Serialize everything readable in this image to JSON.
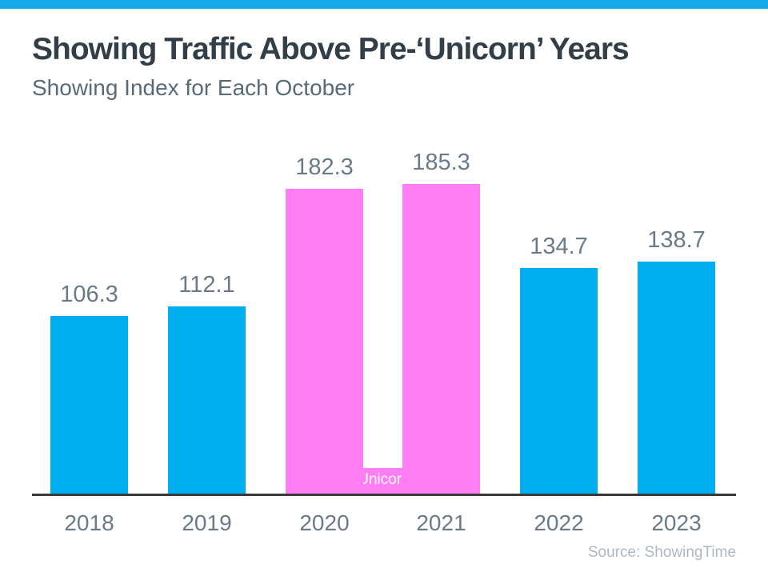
{
  "header": {
    "title": "Showing Traffic Above Pre-‘Unicorn’ Years",
    "subtitle": "Showing Index for Each October"
  },
  "chart_data": {
    "type": "bar",
    "title": "Showing Traffic Above Pre-‘Unicorn’ Years",
    "subtitle": "Showing Index for Each October",
    "categories": [
      "2018",
      "2019",
      "2020",
      "2021",
      "2022",
      "2023"
    ],
    "values": [
      106.3,
      112.1,
      182.3,
      185.3,
      134.7,
      138.7
    ],
    "value_labels": [
      "106.3",
      "112.1",
      "182.3",
      "185.3",
      "134.7",
      "138.7"
    ],
    "highlighted_categories": [
      "2020",
      "2021"
    ],
    "annotation": "‘Unicorn’ Years",
    "annotation_icon": "unicorn-house-icon",
    "colors": {
      "bar": "#00AEEF",
      "bar_highlighted": "#FF7DF5",
      "accent_bar": "#16A9E9",
      "label_text": "#6B7A89",
      "axis_line": "#3A3A3A"
    },
    "grid": false,
    "legend": false,
    "y_axis_shown": false
  },
  "footer": {
    "source": "Source: ShowingTime"
  }
}
